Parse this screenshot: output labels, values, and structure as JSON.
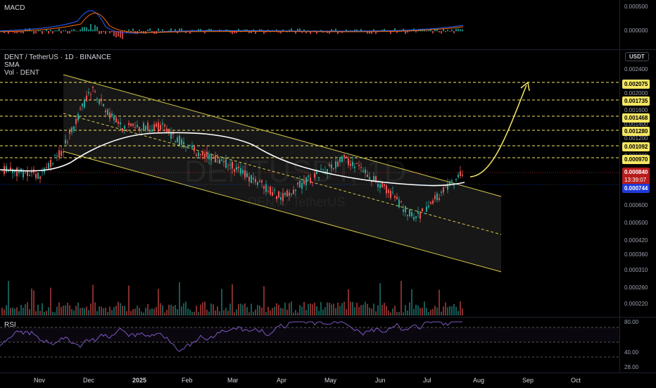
{
  "macd": {
    "title": "MACD",
    "ticks": [
      "0.000500",
      "0.000000"
    ]
  },
  "main": {
    "title": "DENT / TetherUS · 1D · BINANCE",
    "indicator_sma": "SMA",
    "indicator_vol": "Vol · DENT",
    "currency_button": "USDT",
    "watermark": "DENTUSDT, 1D",
    "watermark_sub": "DENT / TetherUS",
    "ticks": [
      "0.002400",
      "0.002000",
      "0.001600",
      "0.001400",
      "0.001200",
      "0.001000",
      "0.000700",
      "0.000600",
      "0.000500",
      "0.000420",
      "0.000360",
      "0.000310",
      "0.000260",
      "0.000220"
    ],
    "levels": [
      "0.002075",
      "0.001735",
      "0.001468",
      "0.001280",
      "0.001092",
      "0.000970"
    ],
    "price": "0.000840",
    "countdown": "13:39:07",
    "sma_value": "0.000744"
  },
  "rsi": {
    "title": "RSI",
    "ticks": [
      "80.00",
      "40.00",
      "28.00"
    ]
  },
  "time_axis": [
    "Nov",
    "Dec",
    "2025",
    "Feb",
    "Mar",
    "Apr",
    "May",
    "Jun",
    "Jul",
    "Aug",
    "Sep",
    "Oct"
  ],
  "colors": {
    "bg": "#000000",
    "up": "#26a69a",
    "down": "#ef5350",
    "level": "#f5e663",
    "sma": "#ffffff",
    "channel": "#d4c84a",
    "rsi": "#7e57c2",
    "price": "#b71c1c",
    "smaTag": "#1e3ad8"
  }
}
